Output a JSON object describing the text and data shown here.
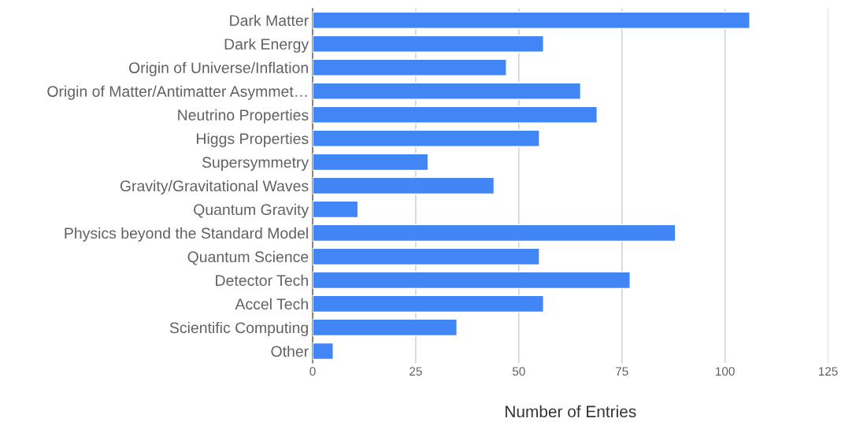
{
  "chart_data": {
    "type": "bar",
    "orientation": "horizontal",
    "categories": [
      "Dark Matter",
      "Dark Energy",
      "Origin of Universe/Inflation",
      "Origin of Matter/Antimatter Asymmet…",
      "Neutrino Properties",
      "Higgs Properties",
      "Supersymmetry",
      "Gravity/Gravitational Waves",
      "Quantum Gravity",
      "Physics beyond the Standard Model",
      "Quantum Science",
      "Detector Tech",
      "Accel Tech",
      "Scientific Computing",
      "Other"
    ],
    "values": [
      106,
      56,
      47,
      65,
      69,
      55,
      28,
      44,
      11,
      88,
      55,
      77,
      56,
      35,
      5
    ],
    "color": "#4285f4",
    "xlabel": "Number of Entries",
    "xlim": [
      0,
      125
    ],
    "xticks": [
      0,
      25,
      50,
      75,
      100,
      125
    ],
    "grid": "x"
  }
}
